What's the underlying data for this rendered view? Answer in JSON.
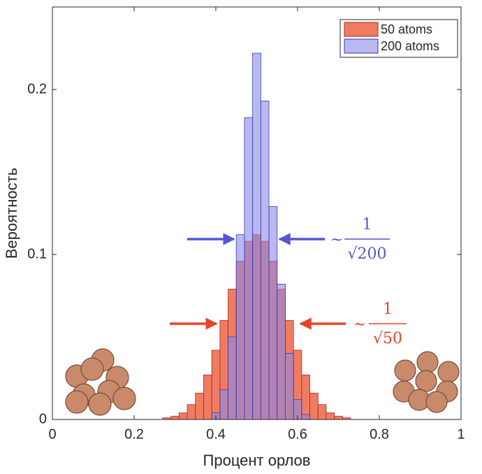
{
  "chart_data": {
    "type": "histogram",
    "xlabel": "Процент орлов",
    "ylabel": "Вероятность",
    "bins": [
      0.19,
      0.21,
      0.23,
      0.25,
      0.27,
      0.29,
      0.31,
      0.33,
      0.35,
      0.37,
      0.39,
      0.41,
      0.43,
      0.45,
      0.47,
      0.49,
      0.51,
      0.53,
      0.55,
      0.57,
      0.59,
      0.61,
      0.63,
      0.65,
      0.67,
      0.69,
      0.71,
      0.73,
      0.75,
      0.77,
      0.79,
      0.81
    ],
    "series": [
      {
        "name": "50 atoms",
        "color": "#ee5a3a",
        "edgecolor": "#a0301a",
        "opacity": 0.8,
        "values": [
          0,
          0,
          0,
          0,
          0.001,
          0.002,
          0.004,
          0.009,
          0.016,
          0.027,
          0.042,
          0.06,
          0.079,
          0.096,
          0.108,
          0.112,
          0.108,
          0.096,
          0.079,
          0.06,
          0.042,
          0.027,
          0.016,
          0.009,
          0.004,
          0.002,
          0.001,
          0,
          0,
          0,
          0
        ]
      },
      {
        "name": "200 atoms",
        "color": "#8a8ae6",
        "edgecolor": "#3838c0",
        "opacity": 0.6,
        "values": [
          0,
          0,
          0,
          0,
          0,
          0,
          0,
          0,
          0,
          0,
          0.004,
          0.018,
          0.05,
          0.112,
          0.183,
          0.222,
          0.193,
          0.129,
          0.082,
          0.04,
          0.012,
          0.003,
          0,
          0,
          0,
          0,
          0,
          0,
          0,
          0,
          0
        ]
      }
    ],
    "xlim": [
      0,
      1
    ],
    "ylim": [
      0,
      0.25
    ],
    "xticks": [
      0,
      0.2,
      0.4,
      0.6,
      0.8,
      1
    ],
    "yticks": [
      0,
      0.1,
      0.2
    ],
    "legend": "upper right",
    "annotations": [
      {
        "symbol": "~",
        "numerator": "1",
        "denominator": "√200",
        "color": "#5555d5"
      },
      {
        "symbol": "~",
        "numerator": "1",
        "denominator": "√50",
        "color": "#e8442a"
      }
    ]
  }
}
